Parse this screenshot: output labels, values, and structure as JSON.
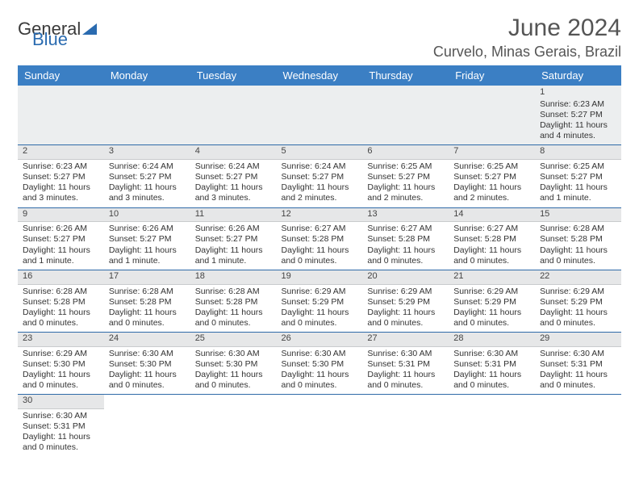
{
  "logo": {
    "text1": "General",
    "text2": "Blue"
  },
  "title": "June 2024",
  "location": "Curvelo, Minas Gerais, Brazil",
  "colors": {
    "header_bg": "#3b7fc4",
    "header_text": "#ffffff",
    "row_divider": "#2f6aa8",
    "daynum_bg": "#e6e7e8",
    "first_row_bg": "#eceeef",
    "body_text": "#333333",
    "title_text": "#555555",
    "logo_blue": "#2a6bb0"
  },
  "typography": {
    "title_fontsize": 30,
    "location_fontsize": 18,
    "dayhead_fontsize": 13,
    "cell_fontsize": 10.5,
    "logo_fontsize": 22
  },
  "day_headers": [
    "Sunday",
    "Monday",
    "Tuesday",
    "Wednesday",
    "Thursday",
    "Friday",
    "Saturday"
  ],
  "weeks": [
    [
      null,
      null,
      null,
      null,
      null,
      null,
      {
        "n": "1",
        "sr": "Sunrise: 6:23 AM",
        "ss": "Sunset: 5:27 PM",
        "dl": "Daylight: 11 hours and 4 minutes."
      }
    ],
    [
      {
        "n": "2",
        "sr": "Sunrise: 6:23 AM",
        "ss": "Sunset: 5:27 PM",
        "dl": "Daylight: 11 hours and 3 minutes."
      },
      {
        "n": "3",
        "sr": "Sunrise: 6:24 AM",
        "ss": "Sunset: 5:27 PM",
        "dl": "Daylight: 11 hours and 3 minutes."
      },
      {
        "n": "4",
        "sr": "Sunrise: 6:24 AM",
        "ss": "Sunset: 5:27 PM",
        "dl": "Daylight: 11 hours and 3 minutes."
      },
      {
        "n": "5",
        "sr": "Sunrise: 6:24 AM",
        "ss": "Sunset: 5:27 PM",
        "dl": "Daylight: 11 hours and 2 minutes."
      },
      {
        "n": "6",
        "sr": "Sunrise: 6:25 AM",
        "ss": "Sunset: 5:27 PM",
        "dl": "Daylight: 11 hours and 2 minutes."
      },
      {
        "n": "7",
        "sr": "Sunrise: 6:25 AM",
        "ss": "Sunset: 5:27 PM",
        "dl": "Daylight: 11 hours and 2 minutes."
      },
      {
        "n": "8",
        "sr": "Sunrise: 6:25 AM",
        "ss": "Sunset: 5:27 PM",
        "dl": "Daylight: 11 hours and 1 minute."
      }
    ],
    [
      {
        "n": "9",
        "sr": "Sunrise: 6:26 AM",
        "ss": "Sunset: 5:27 PM",
        "dl": "Daylight: 11 hours and 1 minute."
      },
      {
        "n": "10",
        "sr": "Sunrise: 6:26 AM",
        "ss": "Sunset: 5:27 PM",
        "dl": "Daylight: 11 hours and 1 minute."
      },
      {
        "n": "11",
        "sr": "Sunrise: 6:26 AM",
        "ss": "Sunset: 5:27 PM",
        "dl": "Daylight: 11 hours and 1 minute."
      },
      {
        "n": "12",
        "sr": "Sunrise: 6:27 AM",
        "ss": "Sunset: 5:28 PM",
        "dl": "Daylight: 11 hours and 0 minutes."
      },
      {
        "n": "13",
        "sr": "Sunrise: 6:27 AM",
        "ss": "Sunset: 5:28 PM",
        "dl": "Daylight: 11 hours and 0 minutes."
      },
      {
        "n": "14",
        "sr": "Sunrise: 6:27 AM",
        "ss": "Sunset: 5:28 PM",
        "dl": "Daylight: 11 hours and 0 minutes."
      },
      {
        "n": "15",
        "sr": "Sunrise: 6:28 AM",
        "ss": "Sunset: 5:28 PM",
        "dl": "Daylight: 11 hours and 0 minutes."
      }
    ],
    [
      {
        "n": "16",
        "sr": "Sunrise: 6:28 AM",
        "ss": "Sunset: 5:28 PM",
        "dl": "Daylight: 11 hours and 0 minutes."
      },
      {
        "n": "17",
        "sr": "Sunrise: 6:28 AM",
        "ss": "Sunset: 5:28 PM",
        "dl": "Daylight: 11 hours and 0 minutes."
      },
      {
        "n": "18",
        "sr": "Sunrise: 6:28 AM",
        "ss": "Sunset: 5:28 PM",
        "dl": "Daylight: 11 hours and 0 minutes."
      },
      {
        "n": "19",
        "sr": "Sunrise: 6:29 AM",
        "ss": "Sunset: 5:29 PM",
        "dl": "Daylight: 11 hours and 0 minutes."
      },
      {
        "n": "20",
        "sr": "Sunrise: 6:29 AM",
        "ss": "Sunset: 5:29 PM",
        "dl": "Daylight: 11 hours and 0 minutes."
      },
      {
        "n": "21",
        "sr": "Sunrise: 6:29 AM",
        "ss": "Sunset: 5:29 PM",
        "dl": "Daylight: 11 hours and 0 minutes."
      },
      {
        "n": "22",
        "sr": "Sunrise: 6:29 AM",
        "ss": "Sunset: 5:29 PM",
        "dl": "Daylight: 11 hours and 0 minutes."
      }
    ],
    [
      {
        "n": "23",
        "sr": "Sunrise: 6:29 AM",
        "ss": "Sunset: 5:30 PM",
        "dl": "Daylight: 11 hours and 0 minutes."
      },
      {
        "n": "24",
        "sr": "Sunrise: 6:30 AM",
        "ss": "Sunset: 5:30 PM",
        "dl": "Daylight: 11 hours and 0 minutes."
      },
      {
        "n": "25",
        "sr": "Sunrise: 6:30 AM",
        "ss": "Sunset: 5:30 PM",
        "dl": "Daylight: 11 hours and 0 minutes."
      },
      {
        "n": "26",
        "sr": "Sunrise: 6:30 AM",
        "ss": "Sunset: 5:30 PM",
        "dl": "Daylight: 11 hours and 0 minutes."
      },
      {
        "n": "27",
        "sr": "Sunrise: 6:30 AM",
        "ss": "Sunset: 5:31 PM",
        "dl": "Daylight: 11 hours and 0 minutes."
      },
      {
        "n": "28",
        "sr": "Sunrise: 6:30 AM",
        "ss": "Sunset: 5:31 PM",
        "dl": "Daylight: 11 hours and 0 minutes."
      },
      {
        "n": "29",
        "sr": "Sunrise: 6:30 AM",
        "ss": "Sunset: 5:31 PM",
        "dl": "Daylight: 11 hours and 0 minutes."
      }
    ],
    [
      {
        "n": "30",
        "sr": "Sunrise: 6:30 AM",
        "ss": "Sunset: 5:31 PM",
        "dl": "Daylight: 11 hours and 0 minutes."
      },
      null,
      null,
      null,
      null,
      null,
      null
    ]
  ]
}
